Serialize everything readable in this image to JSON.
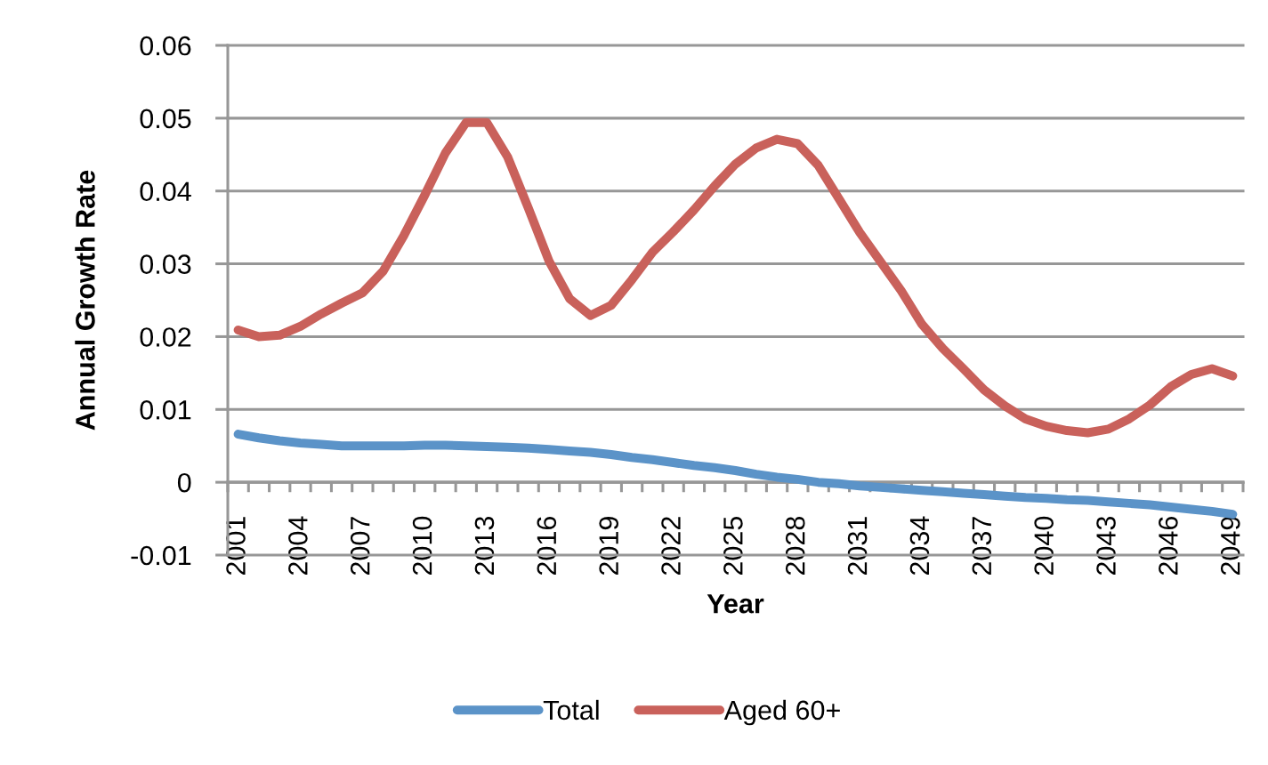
{
  "chart_data": {
    "type": "line",
    "xlabel": "Year",
    "ylabel": "Annual Growth Rate",
    "categories": [
      "2001",
      null,
      null,
      "2004",
      null,
      null,
      "2007",
      null,
      null,
      "2010",
      null,
      null,
      "2013",
      null,
      null,
      "2016",
      null,
      null,
      "2019",
      null,
      null,
      "2022",
      null,
      null,
      "2025",
      null,
      null,
      "2028",
      null,
      null,
      "2031",
      null,
      null,
      "2034",
      null,
      null,
      "2037",
      null,
      null,
      "2040",
      null,
      null,
      "2043",
      null,
      null,
      "2046",
      null,
      null,
      "2049"
    ],
    "series": [
      {
        "name": "Total",
        "color": "#5b93c8",
        "values": [
          0.0066,
          0.0061,
          0.0057,
          0.0054,
          0.0052,
          0.005,
          0.005,
          0.005,
          0.005,
          0.0051,
          0.0051,
          0.005,
          0.0049,
          0.0048,
          0.0047,
          0.0045,
          0.0043,
          0.0041,
          0.0038,
          0.0034,
          0.0031,
          0.0027,
          0.0023,
          0.002,
          0.0016,
          0.0011,
          0.0007,
          0.0004,
          0,
          -0.0002,
          -0.0005,
          -0.0007,
          -0.0009,
          -0.0011,
          -0.0013,
          -0.0015,
          -0.0017,
          -0.0019,
          -0.0021,
          -0.0022,
          -0.0024,
          -0.0025,
          -0.0027,
          -0.0029,
          -0.0031,
          -0.0034,
          -0.0037,
          -0.004,
          -0.0044
        ]
      },
      {
        "name": "Aged 60+",
        "color": "#c9615b",
        "values": [
          0.0209,
          0.02,
          0.0202,
          0.0214,
          0.0231,
          0.0246,
          0.026,
          0.029,
          0.0339,
          0.0394,
          0.0452,
          0.0494,
          0.0494,
          0.0447,
          0.0377,
          0.0304,
          0.0252,
          0.0229,
          0.0243,
          0.0278,
          0.0316,
          0.0344,
          0.0374,
          0.0407,
          0.0437,
          0.0459,
          0.0471,
          0.0465,
          0.0435,
          0.0389,
          0.0343,
          0.0303,
          0.0263,
          0.0217,
          0.0184,
          0.0156,
          0.0127,
          0.0105,
          0.0087,
          0.0077,
          0.0071,
          0.0068,
          0.0073,
          0.0087,
          0.0106,
          0.0131,
          0.0148,
          0.0156,
          0.0146
        ]
      }
    ],
    "ylim": [
      -0.01,
      0.06
    ],
    "yticks": [
      -0.01,
      0,
      0.01,
      0.02,
      0.03,
      0.04,
      0.05,
      0.06
    ],
    "grid": "y",
    "legend": "bottom",
    "line_style": "solid"
  }
}
